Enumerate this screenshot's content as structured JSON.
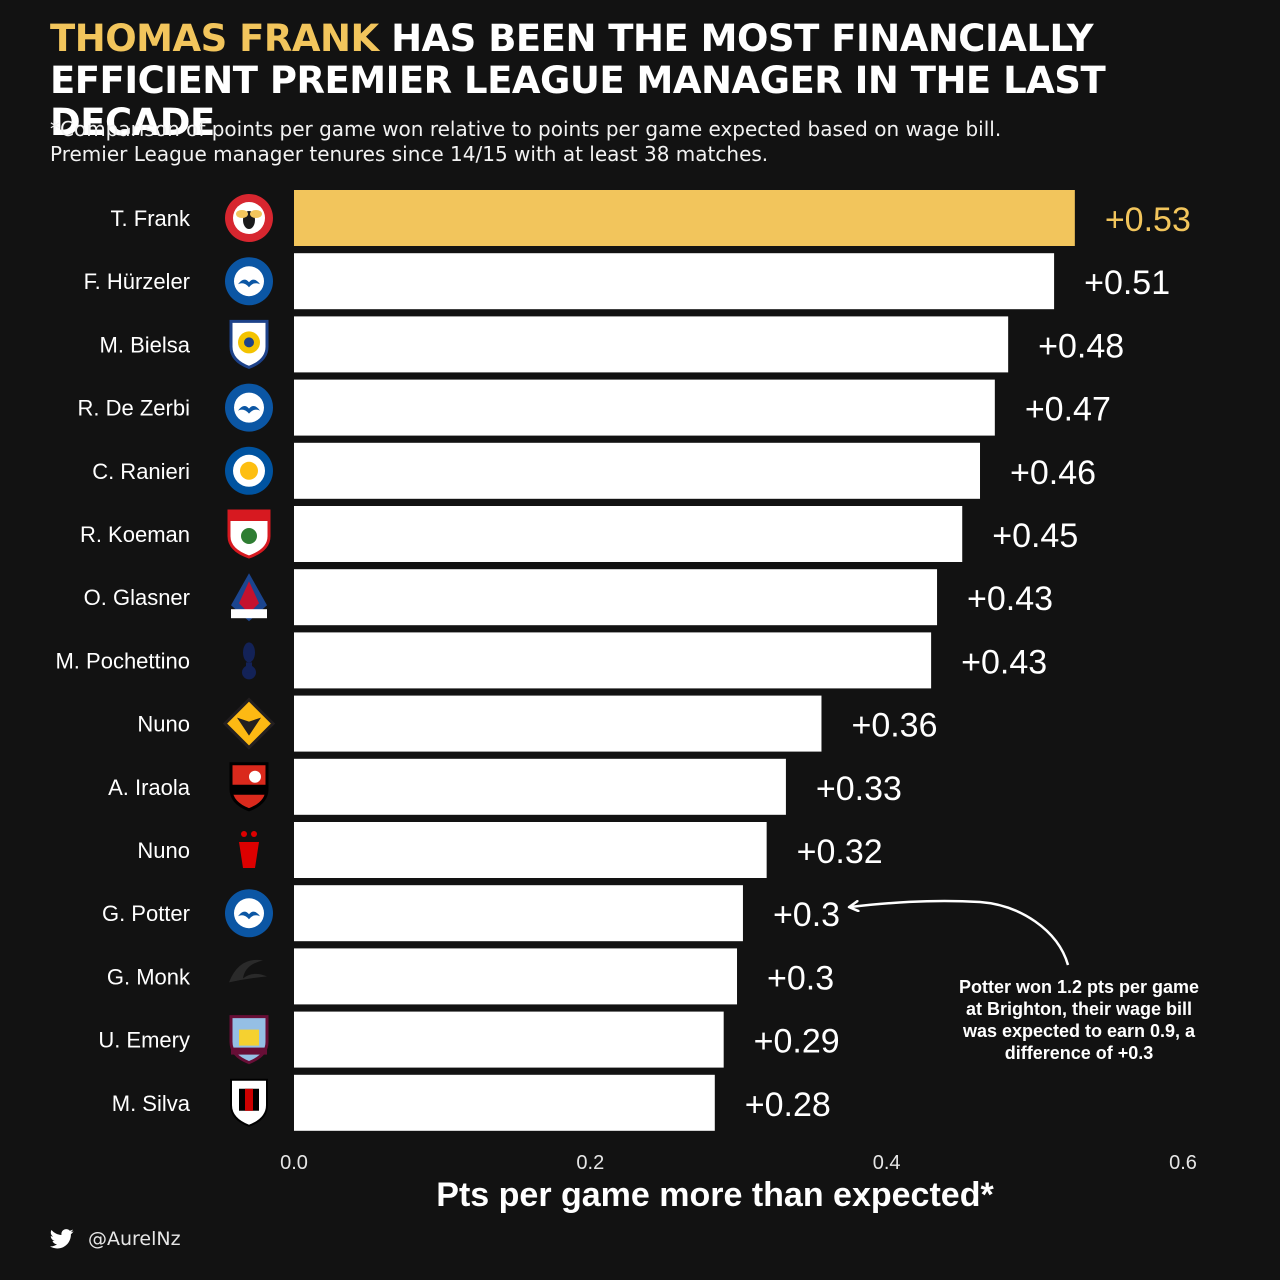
{
  "header": {
    "title_highlight": "THOMAS FRANK",
    "title_rest": " HAS BEEN THE MOST FINANCIALLY EFFICIENT PREMIER LEAGUE MANAGER IN THE LAST DECADE",
    "subtitle_line1": "*Comparison of points per game won relative to points per game expected based on wage bill.",
    "subtitle_line2": "Premier League manager tenures since 14/15 with at least 38 matches."
  },
  "colors": {
    "background": "#121212",
    "highlight": "#f2c55c",
    "bar": "#ffffff",
    "text": "#ffffff"
  },
  "chart_data": {
    "type": "bar",
    "orientation": "horizontal",
    "xlabel": "Pts per game more than expected*",
    "xlim": [
      0,
      0.6
    ],
    "xticks": [
      0,
      0.2,
      0.4,
      0.6
    ],
    "xtick_labels": [
      "0.0",
      "0.2",
      "0.4",
      "0.6"
    ],
    "grid": false,
    "categories": [
      "T. Frank",
      "F. Hürzeler",
      "M. Bielsa",
      "R. De Zerbi",
      "C. Ranieri",
      "R. Koeman",
      "O. Glasner",
      "M. Pochettino",
      "Nuno",
      "A. Iraola",
      "Nuno",
      "G. Potter",
      "G. Monk",
      "U. Emery",
      "M. Silva"
    ],
    "values": [
      0.53,
      0.51,
      0.48,
      0.47,
      0.46,
      0.45,
      0.43,
      0.43,
      0.36,
      0.33,
      0.32,
      0.3,
      0.3,
      0.29,
      0.28
    ],
    "value_labels": [
      "+0.53",
      "+0.51",
      "+0.48",
      "+0.47",
      "+0.46",
      "+0.45",
      "+0.43",
      "+0.43",
      "+0.36",
      "+0.33",
      "+0.32",
      "+0.3",
      "+0.3",
      "+0.29",
      "+0.28"
    ],
    "bar_value_extent": [
      0.527,
      0.513,
      0.482,
      0.473,
      0.463,
      0.451,
      0.434,
      0.43,
      0.356,
      0.332,
      0.319,
      0.303,
      0.299,
      0.29,
      0.284
    ],
    "highlight_index": 0,
    "club_badges": [
      "brentford-badge-icon",
      "brighton-badge-icon",
      "leeds-badge-icon",
      "brighton-badge-icon",
      "leicester-badge-icon",
      "southampton-badge-icon",
      "crystal-palace-badge-icon",
      "tottenham-badge-icon",
      "wolves-badge-icon",
      "bournemouth-badge-icon",
      "nottingham-forest-badge-icon",
      "brighton-badge-icon",
      "swansea-badge-icon",
      "aston-villa-badge-icon",
      "fulham-badge-icon"
    ],
    "annotation": {
      "target_index": 11,
      "lines": [
        "Potter won 1.2 pts per game",
        "at Brighton, their wage bill",
        "was expected to earn 0.9, a",
        "difference of +0.3"
      ]
    }
  },
  "footer": {
    "icon": "twitter-bird-icon",
    "handle": "@AurelNz"
  }
}
